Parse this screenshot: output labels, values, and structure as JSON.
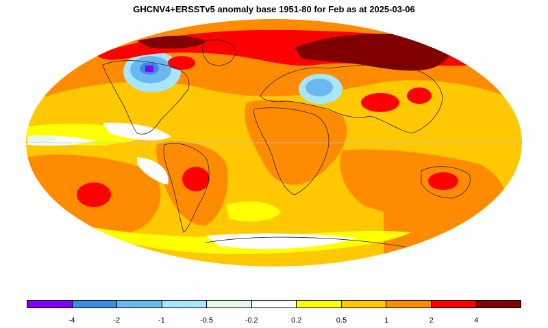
{
  "title": "GHCNV4+ERSSTv5 anomaly base 1951-80 for Feb as at 2025-03-06",
  "legend": {
    "colors": [
      "#7f00ff",
      "#3c8ce6",
      "#6ab8f0",
      "#a8e6ff",
      "#e6f8e6",
      "#ffffff",
      "#ffff00",
      "#ffc800",
      "#ff8c00",
      "#ff0000",
      "#800000"
    ],
    "labels": [
      "-4",
      "-2",
      "-1",
      "-0.5",
      "-0.2",
      "0.2",
      "0.5",
      "1",
      "2",
      "4"
    ]
  },
  "map": {
    "projection": "Mollweide",
    "ocean_base_color": "#ffc800",
    "coastline_color": "#222222"
  }
}
